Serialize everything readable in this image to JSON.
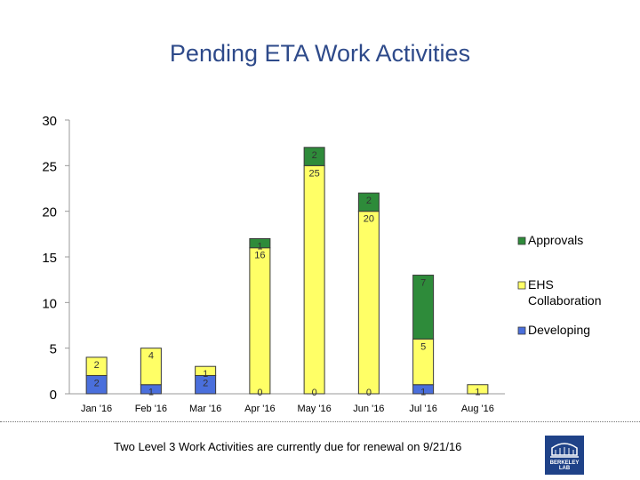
{
  "title": "Pending ETA Work Activities",
  "footnote": "Two Level 3 Work Activities are currently due for renewal on 9/21/16",
  "logo": {
    "text": "BERKELEY LAB",
    "color": "#1f4288"
  },
  "chart_data": {
    "type": "bar",
    "stacked": true,
    "title": "",
    "xlabel": "",
    "ylabel": "",
    "ylim": [
      0,
      30
    ],
    "yticks": [
      0,
      5,
      10,
      15,
      20,
      25,
      30
    ],
    "grid": false,
    "legend": "right",
    "categories": [
      "Jan '16",
      "Feb '16",
      "Mar '16",
      "Apr '16",
      "May '16",
      "Jun '16",
      "Jul '16",
      "Aug '16"
    ],
    "series": [
      {
        "name": "Developing",
        "color": "#4a6fdc",
        "values": [
          2,
          1,
          2,
          0,
          0,
          0,
          1,
          0
        ],
        "labels": [
          "2",
          "1",
          "2",
          "0",
          "0",
          "0",
          "1",
          ""
        ]
      },
      {
        "name": "EHS Collaboration",
        "color": "#ffff66",
        "values": [
          2,
          4,
          1,
          16,
          25,
          20,
          5,
          1
        ],
        "labels": [
          "2",
          "4",
          "1",
          "16",
          "25",
          "20",
          "5",
          "1"
        ]
      },
      {
        "name": "Approvals",
        "color": "#2e8b3a",
        "values": [
          0,
          0,
          0,
          1,
          2,
          2,
          7,
          0
        ],
        "labels": [
          "",
          "",
          "",
          "1",
          "2",
          "2",
          "7",
          ""
        ]
      }
    ],
    "legend_order": [
      "Approvals",
      "EHS Collaboration",
      "Developing"
    ]
  }
}
